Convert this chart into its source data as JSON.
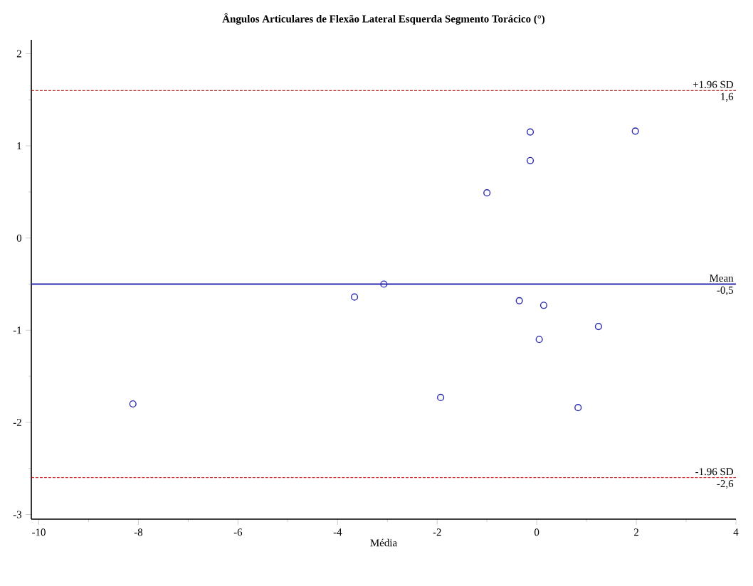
{
  "chart_data": {
    "type": "scatter",
    "title": "Ângulos Articulares de Flexão Lateral Esquerda Segmento Torácico (°)",
    "xlabel": "Média",
    "x": [
      -8.11,
      -3.66,
      -3.07,
      -0.13,
      1.98,
      -0.13,
      -1.0,
      -0.35,
      0.14,
      1.24,
      0.05,
      -1.93,
      0.83
    ],
    "series": [
      {
        "color": "#2b2bb0",
        "values": [
          -1.8,
          -0.64,
          -0.5,
          1.15,
          1.16,
          0.84,
          0.49,
          -0.68,
          -0.73,
          -0.96,
          -1.1,
          -1.73,
          -1.84
        ]
      }
    ],
    "marker": "circle",
    "xlim": [
      -10.15,
      4
    ],
    "ylim": [
      -3.05,
      2.15
    ],
    "xticks": [
      -10,
      -8,
      -6,
      -4,
      -2,
      0,
      2,
      4
    ],
    "yticks": [
      -3,
      -2,
      -1,
      0,
      1,
      2
    ],
    "ref_lines": [
      {
        "axis": "y",
        "value": 1.6,
        "label": "+1.96 SD",
        "color": "#a00000",
        "line_style": "dashed"
      },
      {
        "axis": "y",
        "value": -0.5,
        "label": "Mean",
        "color": "#2b2bb0",
        "line_style": "solid"
      },
      {
        "axis": "y",
        "value": -2.6,
        "label": "-1.96 SD",
        "color": "#c00000",
        "line_style": "dashed"
      }
    ],
    "annotations": [
      "1,6",
      "-0,5",
      "-2,6"
    ],
    "grid": false
  }
}
